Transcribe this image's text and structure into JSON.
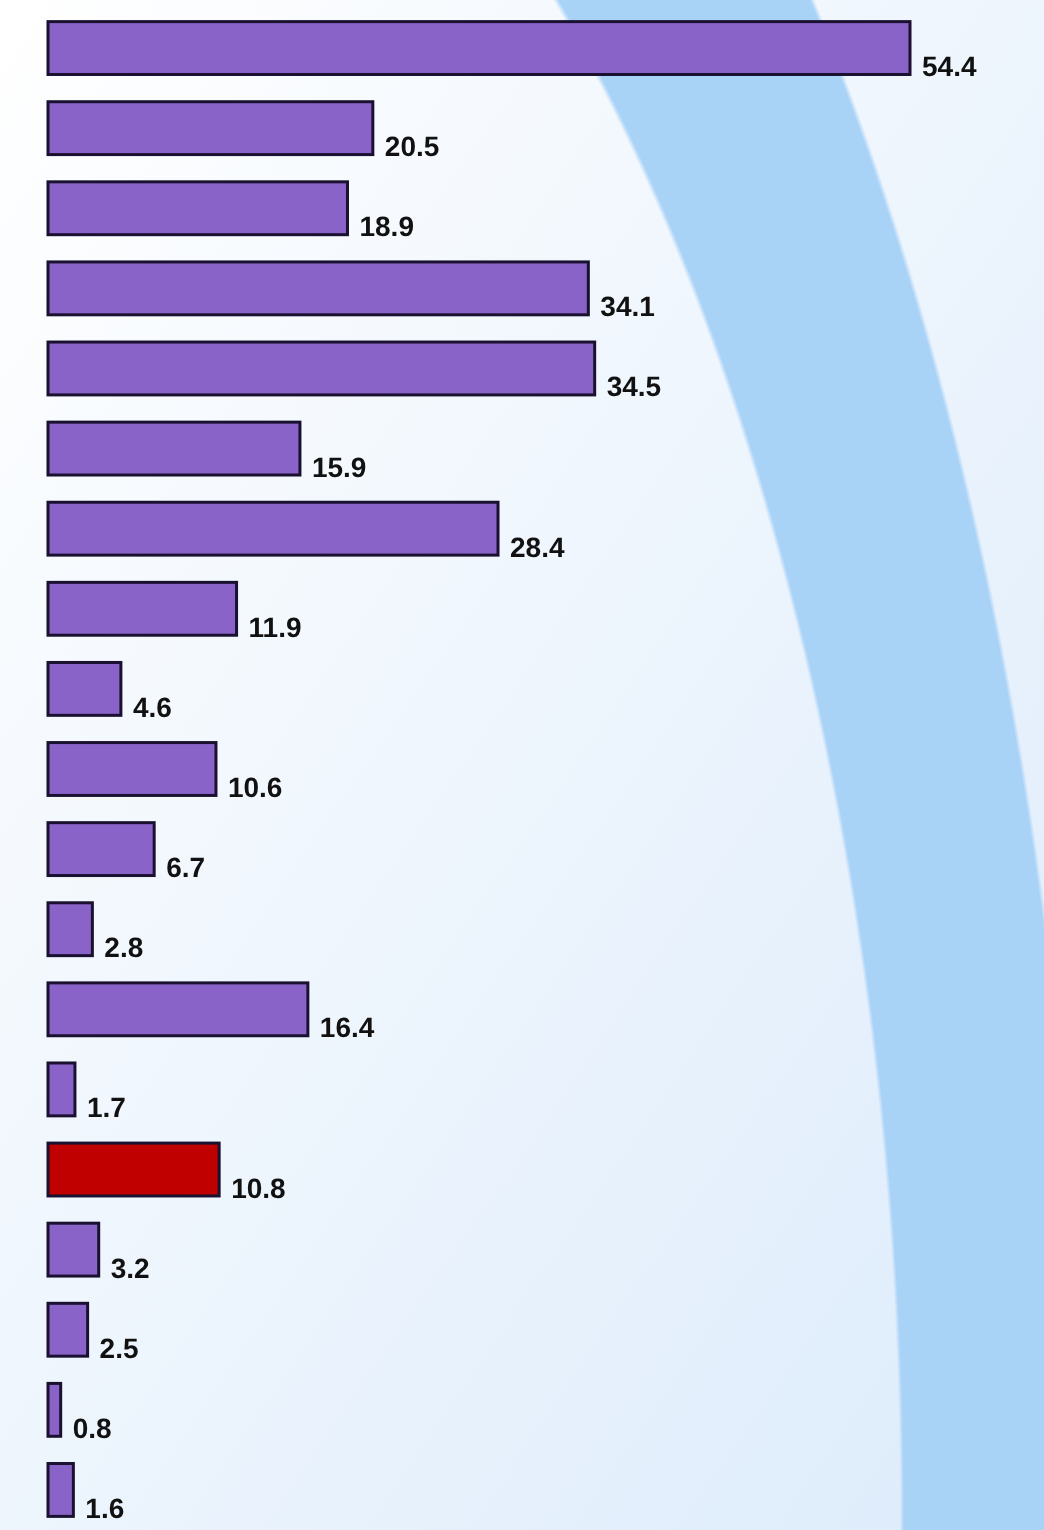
{
  "chart_data": {
    "type": "bar",
    "orientation": "horizontal",
    "categories": [
      null,
      null,
      null,
      null,
      null,
      null,
      null,
      null,
      null,
      null,
      null,
      null,
      null,
      null,
      null,
      null,
      null,
      null,
      null
    ],
    "values": [
      54.4,
      20.5,
      18.9,
      34.1,
      34.5,
      15.9,
      28.4,
      11.9,
      4.6,
      10.6,
      6.7,
      2.8,
      16.4,
      1.7,
      10.8,
      3.2,
      2.5,
      0.8,
      1.6
    ],
    "colors": [
      "#8a63c9",
      "#8a63c9",
      "#8a63c9",
      "#8a63c9",
      "#8a63c9",
      "#8a63c9",
      "#8a63c9",
      "#8a63c9",
      "#8a63c9",
      "#8a63c9",
      "#8a63c9",
      "#8a63c9",
      "#8a63c9",
      "#8a63c9",
      "#c00000",
      "#8a63c9",
      "#8a63c9",
      "#8a63c9",
      "#8a63c9"
    ],
    "data_labels": true
  }
}
